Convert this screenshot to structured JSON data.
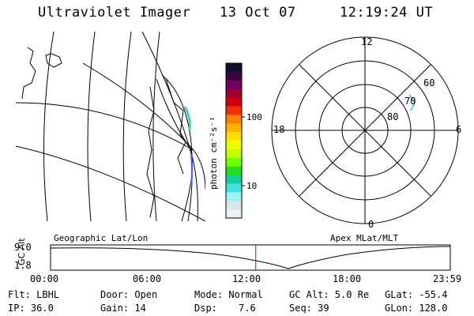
{
  "header": {
    "instrument": "Ultraviolet Imager",
    "date": "13 Oct 07",
    "time": "12:19:24 UT"
  },
  "colorbar": {
    "unit_label": "photon cm⁻²s⁻¹",
    "ticks": [
      "100",
      "10"
    ],
    "colors": [
      "#101030",
      "#400040",
      "#700060",
      "#a00030",
      "#d00010",
      "#f03000",
      "#ff8000",
      "#ffb000",
      "#ffe000",
      "#f0ff00",
      "#c0ff00",
      "#70ff00",
      "#20e020",
      "#10d0a0",
      "#40e0e0",
      "#a0f0f0",
      "#d8e8e8",
      "#f0f0f0"
    ]
  },
  "polar": {
    "mlt_labels": {
      "top": "12",
      "bottom": "0",
      "left": "18",
      "right": "6"
    },
    "lat_labels": [
      "60",
      "70",
      "80"
    ]
  },
  "timeline": {
    "left_caption": "Geographic Lat/Lon",
    "right_caption": "Apex MLat/MLT",
    "axis_label": "GC Alt",
    "y_ticks": [
      "9.0",
      "1.8"
    ],
    "x_ticks": [
      "00:00",
      "06:00",
      "12:00",
      "18:00",
      "23:59"
    ],
    "current_hour": 12.32,
    "marker_color": "#cc0000"
  },
  "status": {
    "filter": "Flt: LBHL",
    "ip": "IP: 36.0",
    "door": "Door: Open",
    "gain": "Gain: 14",
    "mode": "Mode: Normal",
    "dsp_label": "Dsp:",
    "dsp_value": "7.6",
    "gc_alt": "GC Alt: 5.0 Re",
    "seq": "Seq: 39",
    "glat": "GLat: -55.4",
    "glon": "GLon: 128.0"
  }
}
